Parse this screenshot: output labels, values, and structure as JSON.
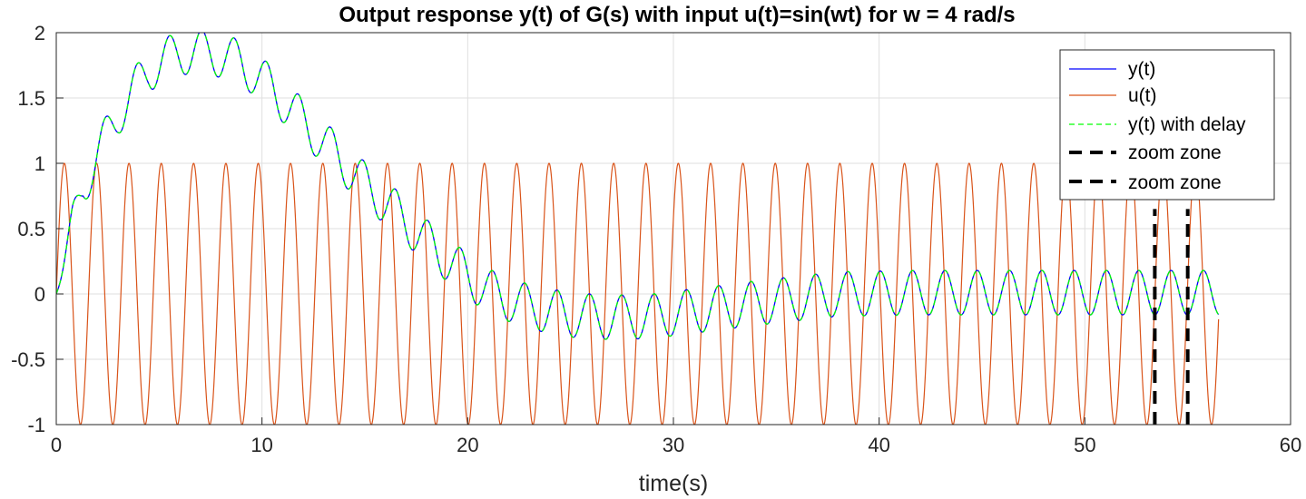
{
  "chart_data": {
    "type": "line",
    "title": "Output response y(t) of G(s) with input u(t)=sin(wt) for w = 4 rad/s",
    "xlabel": "time(s)",
    "ylabel": "",
    "xlim": [
      0,
      60
    ],
    "ylim": [
      -1,
      2
    ],
    "xticks": [
      "0",
      "10",
      "20",
      "30",
      "40",
      "50",
      "60"
    ],
    "yticks": [
      "-1",
      "-0.5",
      "0",
      "0.5",
      "1",
      "1.5",
      "2"
    ],
    "grid": true,
    "legend_position": "top-right",
    "omega": 4,
    "t_end": 56.5,
    "series": [
      {
        "name": "y(t)",
        "color": "#0000ff",
        "style": "solid",
        "envelope_points": [
          [
            0,
            0.0
          ],
          [
            1.3,
            0.83
          ],
          [
            3.0,
            1.38
          ],
          [
            4.5,
            1.72
          ],
          [
            6.0,
            1.85
          ],
          [
            7.5,
            1.85
          ],
          [
            9.0,
            1.77
          ],
          [
            10.5,
            1.57
          ],
          [
            12.0,
            1.32
          ],
          [
            13.5,
            1.08
          ],
          [
            15.0,
            0.84
          ],
          [
            16.5,
            0.63
          ],
          [
            18.0,
            0.4
          ],
          [
            19.5,
            0.2
          ],
          [
            21.0,
            0.02
          ],
          [
            23.0,
            -0.1
          ],
          [
            25.0,
            -0.16
          ],
          [
            27.0,
            -0.18
          ],
          [
            29.0,
            -0.17
          ],
          [
            31.0,
            -0.13
          ],
          [
            34.0,
            -0.07
          ],
          [
            38.0,
            0.0
          ],
          [
            42.0,
            0.01
          ],
          [
            56.5,
            0.01
          ]
        ],
        "ripple_amplitude": 0.17
      },
      {
        "name": "u(t)",
        "color": "#d95319",
        "style": "solid",
        "amplitude": 1
      },
      {
        "name": "y(t) with delay",
        "color": "#00ff00",
        "style": "dashed"
      }
    ],
    "vlines": [
      {
        "name": "zoom zone",
        "x": 53.4,
        "y_range": [
          -1,
          0.65
        ],
        "color": "#000000",
        "style": "dashed"
      },
      {
        "name": "zoom zone",
        "x": 55.0,
        "y_range": [
          -1,
          0.65
        ],
        "color": "#000000",
        "style": "dashed"
      }
    ]
  }
}
